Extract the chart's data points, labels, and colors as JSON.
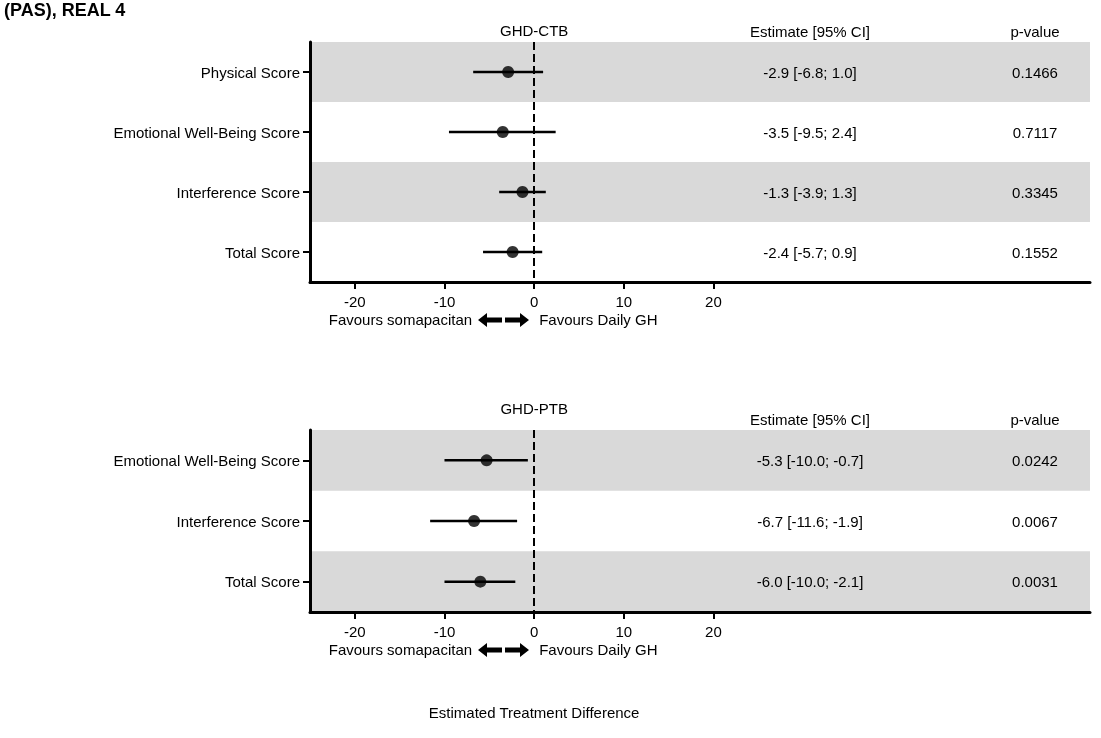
{
  "chart_data": [
    {
      "type": "scatter",
      "title": "(PAS), REAL 4",
      "subtitle": "GHD-CTB",
      "orientation": "horizontal",
      "categories": [
        "Physical Score",
        "Emotional Well-Being Score",
        "Interference Score",
        "Total Score"
      ],
      "values": [
        -2.9,
        -3.5,
        -1.3,
        -2.4
      ],
      "errors": [
        [
          -6.8,
          1.0
        ],
        [
          -9.5,
          2.4
        ],
        [
          -3.9,
          1.3
        ],
        [
          -5.7,
          0.9
        ]
      ],
      "color": "#000000",
      "marker": "circle",
      "xlim": [
        -25,
        62
      ],
      "xticks": [
        -20,
        -10,
        0,
        10,
        20
      ],
      "ref_lines": [
        {
          "axis": "x",
          "value": 0,
          "line_style": "dashed",
          "color": "#000000"
        }
      ],
      "bands": [
        {
          "axis": "y",
          "from": "Physical Score",
          "to": "Physical Score",
          "color": "#d9d9d9"
        },
        {
          "axis": "y",
          "from": "Interference Score",
          "to": "Interference Score",
          "color": "#d9d9d9"
        }
      ],
      "annotations": [
        "Estimate [95% CI]",
        "p-value",
        "Favours somapacitan",
        "Favours Daily GH",
        "-2.9 [-6.8; 1.0]",
        "-3.5 [-9.5; 2.4]",
        "-1.3 [-3.9; 1.3]",
        "-2.4 [-5.7; 0.9]",
        "0.1466",
        "0.7117",
        "0.3345",
        "0.1552"
      ],
      "grid": false
    },
    {
      "type": "scatter",
      "title": "GHD-PTB",
      "xlabel": "Estimated Treatment Difference",
      "orientation": "horizontal",
      "categories": [
        "Emotional Well-Being Score",
        "Interference Score",
        "Total Score"
      ],
      "values": [
        -5.3,
        -6.7,
        -6.0
      ],
      "errors": [
        [
          -10.0,
          -0.7
        ],
        [
          -11.6,
          -1.9
        ],
        [
          -10.0,
          -2.1
        ]
      ],
      "color": "#000000",
      "marker": "circle",
      "xlim": [
        -25,
        62
      ],
      "xticks": [
        -20,
        -10,
        0,
        10,
        20
      ],
      "ref_lines": [
        {
          "axis": "x",
          "value": 0,
          "line_style": "dashed",
          "color": "#000000"
        }
      ],
      "bands": [
        {
          "axis": "y",
          "from": "Emotional Well-Being Score",
          "to": "Emotional Well-Being Score",
          "color": "#d9d9d9"
        },
        {
          "axis": "y",
          "from": "Total Score",
          "to": "Total Score",
          "color": "#d9d9d9"
        }
      ],
      "annotations": [
        "Estimate [95% CI]",
        "p-value",
        "Favours somapacitan",
        "Favours Daily GH",
        "-5.3 [-10.0; -0.7]",
        "-6.7 [-11.6; -1.9]",
        "-6.0 [-10.0; -2.1]",
        "0.0242",
        "0.0067",
        "0.0031"
      ],
      "grid": false
    }
  ]
}
